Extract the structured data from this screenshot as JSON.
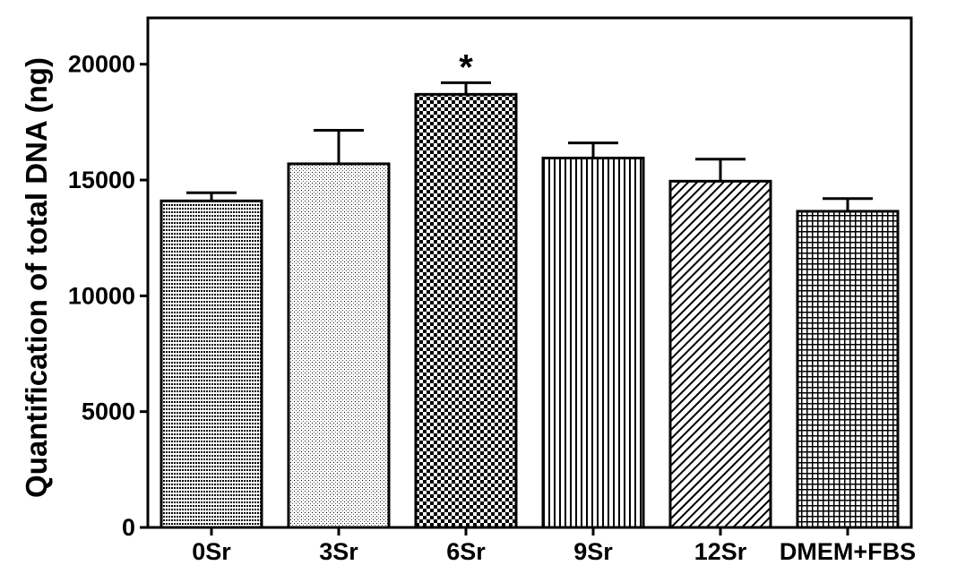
{
  "chart_data": {
    "type": "bar",
    "title": "",
    "xlabel": "",
    "ylabel": "Quantification of  total DNA (ng)",
    "categories": [
      "0Sr",
      "3Sr",
      "6Sr",
      "9Sr",
      "12Sr",
      "DMEM+FBS"
    ],
    "values": [
      14100,
      15700,
      18700,
      15950,
      14950,
      13650
    ],
    "errors": [
      350,
      1450,
      500,
      650,
      950,
      550
    ],
    "annotations": [
      {
        "category": "6Sr",
        "text": "*"
      }
    ],
    "ylim": [
      0,
      22000
    ],
    "yticks": [
      0,
      5000,
      10000,
      15000,
      20000
    ],
    "grid": false,
    "legend": "none"
  }
}
